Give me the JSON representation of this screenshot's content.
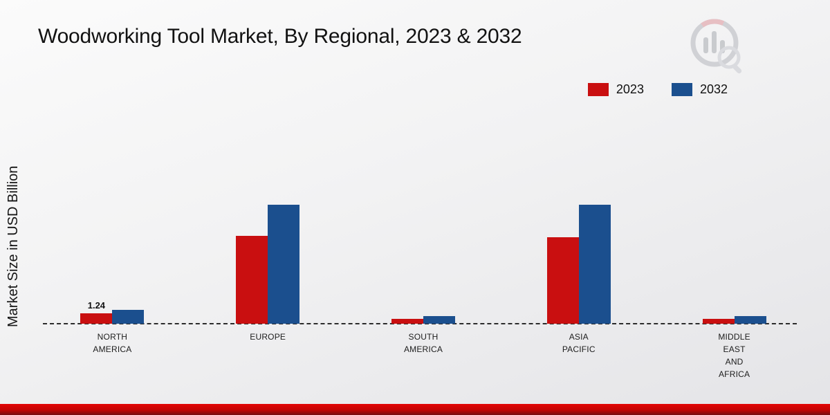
{
  "title": "Woodworking Tool Market, By Regional, 2023 & 2032",
  "ylabel": "Market Size in USD Billion",
  "colors": {
    "series_2023": "#c90f10",
    "series_2032": "#1b4f8e",
    "footer_stripe": "#c30404"
  },
  "chart_data": {
    "type": "bar",
    "title": "Woodworking Tool Market, By Regional, 2023 & 2032",
    "xlabel": "",
    "ylabel": "Market Size in USD Billion",
    "categories": [
      "NORTH AMERICA",
      "EUROPE",
      "SOUTH AMERICA",
      "ASIA PACIFIC",
      "MIDDLE EAST AND AFRICA"
    ],
    "series": [
      {
        "name": "2023",
        "color": "#c90f10",
        "values": [
          1.24,
          10.5,
          0.55,
          10.3,
          0.55
        ]
      },
      {
        "name": "2032",
        "color": "#1b4f8e",
        "values": [
          1.65,
          14.2,
          0.9,
          14.2,
          0.9
        ]
      }
    ],
    "data_labels": [
      {
        "category_index": 0,
        "series_index": 0,
        "text": "1.24"
      }
    ],
    "ylim": [
      0,
      15
    ],
    "grid": false,
    "baseline_style": "dashed",
    "legend_position": "top-right",
    "legend": [
      "2023",
      "2032"
    ]
  }
}
